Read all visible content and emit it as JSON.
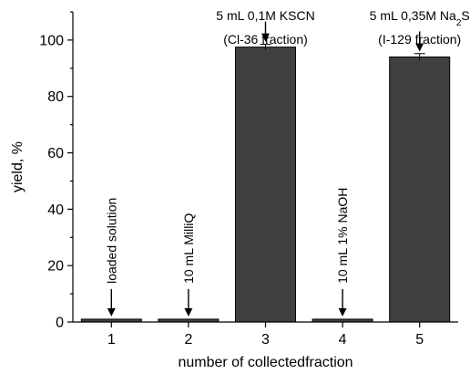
{
  "chart_data": {
    "type": "bar",
    "categories": [
      "1",
      "2",
      "3",
      "4",
      "5"
    ],
    "values": [
      1,
      1,
      97.5,
      1,
      94
    ],
    "errors": [
      0,
      0,
      1.0,
      0,
      1.2
    ],
    "bar_color": "#404040",
    "xlabel": "number of collectedfraction",
    "ylabel": "yield, %",
    "ylim": [
      0,
      110
    ],
    "yticks": [
      0,
      20,
      40,
      60,
      80,
      100
    ],
    "grid": false,
    "annotations": [
      {
        "category": "1",
        "text": "loaded solution",
        "orientation": "vertical"
      },
      {
        "category": "2",
        "text": "10 mL MilliQ",
        "orientation": "vertical"
      },
      {
        "category": "3",
        "lines": [
          "5 mL 0,1M KSCN",
          "(Cl-36 fraction)"
        ],
        "orientation": "horizontal"
      },
      {
        "category": "4",
        "text": "10 mL 1% NaOH",
        "orientation": "vertical"
      },
      {
        "category": "5",
        "lines": [
          "5 mL 0,35M Na",
          "(I-129 fraction)"
        ],
        "subscript": "2",
        "suffix": "S",
        "orientation": "horizontal"
      }
    ]
  }
}
